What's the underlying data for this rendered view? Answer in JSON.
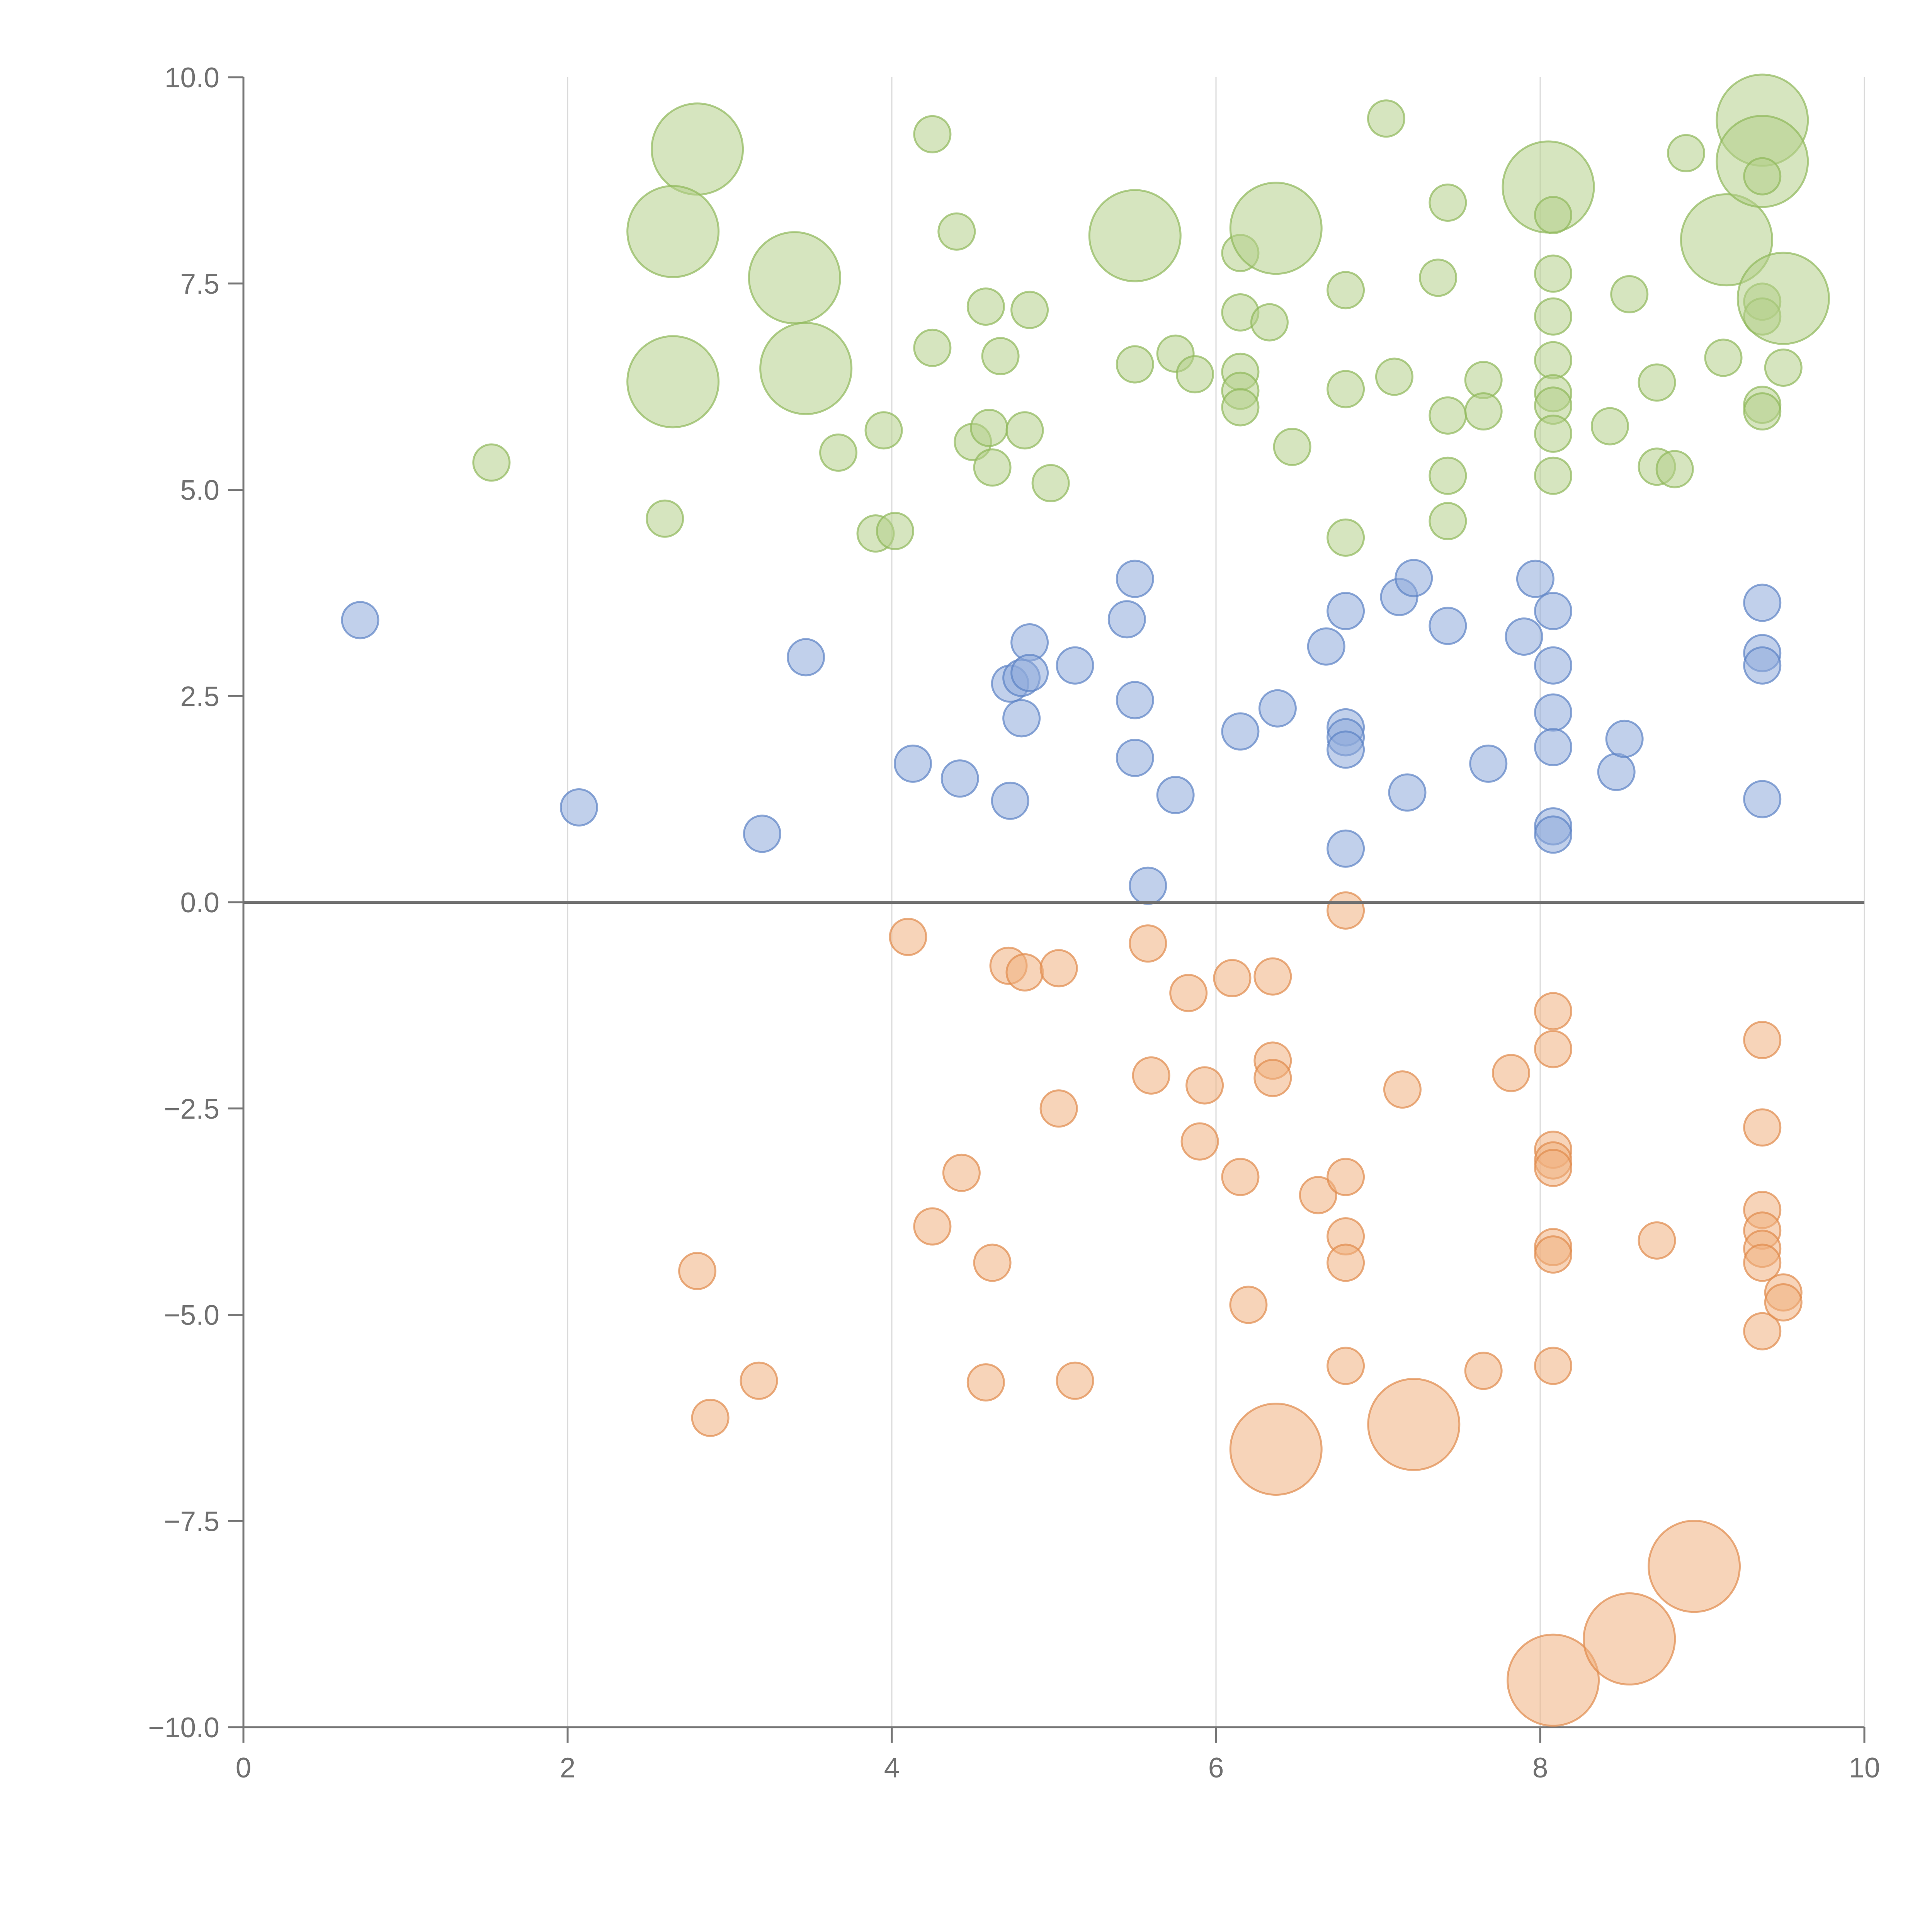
{
  "chart_data": {
    "type": "scatter",
    "title": "",
    "xlabel": "",
    "ylabel": "",
    "xlim": [
      0,
      10
    ],
    "ylim": [
      -10,
      10
    ],
    "grid": "vertical lines at x ticks",
    "legend": "none",
    "x_ticks": [
      "0",
      "2",
      "4",
      "6",
      "8",
      "10"
    ],
    "y_ticks": [
      "−10.0",
      "−7.5",
      "−5.0",
      "−2.5",
      "0.0",
      "2.5",
      "5.0",
      "7.5",
      "10.0"
    ],
    "x_tick_values": [
      0,
      2,
      4,
      6,
      8,
      10
    ],
    "y_tick_values": [
      -10,
      -7.5,
      -5,
      -2.5,
      0,
      2.5,
      5,
      7.5,
      10
    ],
    "reference_line_y": 0,
    "colors": {
      "green_fill": "#b5d08a",
      "green_stroke": "#8fb85a",
      "blue_fill": "#8eaadb",
      "blue_stroke": "#5b82c4",
      "orange_fill": "#f0b07f",
      "orange_stroke": "#df8a4c",
      "label_color": "#ffffff"
    },
    "series": [
      {
        "color_key": "green",
        "points": [
          [
            1.53,
            5.33,
            1
          ],
          [
            2.6,
            4.65,
            1
          ],
          [
            2.8,
            9.13,
            3
          ],
          [
            2.65,
            8.13,
            3
          ],
          [
            2.65,
            6.31,
            3
          ],
          [
            3.4,
            7.57,
            3
          ],
          [
            3.47,
            6.47,
            3
          ],
          [
            3.67,
            5.45,
            1
          ],
          [
            3.9,
            4.47,
            1
          ],
          [
            3.95,
            5.72,
            1
          ],
          [
            4.02,
            4.5,
            1
          ],
          [
            4.25,
            9.31,
            1
          ],
          [
            4.25,
            6.72,
            1
          ],
          [
            4.4,
            8.13,
            1
          ],
          [
            4.5,
            5.58,
            1
          ],
          [
            4.58,
            7.22,
            1
          ],
          [
            4.6,
            5.75,
            1
          ],
          [
            4.62,
            5.27,
            1
          ],
          [
            4.67,
            6.62,
            1
          ],
          [
            4.82,
            5.72,
            1
          ],
          [
            4.85,
            7.18,
            1
          ],
          [
            4.98,
            5.08,
            1
          ],
          [
            5.5,
            8.08,
            3
          ],
          [
            5.5,
            6.52,
            1
          ],
          [
            5.75,
            6.65,
            1
          ],
          [
            5.87,
            6.4,
            1
          ],
          [
            6.15,
            7.87,
            1
          ],
          [
            6.15,
            7.15,
            1
          ],
          [
            6.15,
            6.43,
            1
          ],
          [
            6.15,
            6.2,
            1
          ],
          [
            6.15,
            6.0,
            1
          ],
          [
            6.33,
            7.03,
            1
          ],
          [
            6.37,
            8.17,
            3
          ],
          [
            6.47,
            5.52,
            1
          ],
          [
            6.8,
            7.42,
            1
          ],
          [
            6.8,
            6.22,
            1
          ],
          [
            6.8,
            4.42,
            1
          ],
          [
            7.05,
            9.5,
            1
          ],
          [
            7.1,
            6.37,
            1
          ],
          [
            7.37,
            7.57,
            1
          ],
          [
            7.43,
            8.48,
            1
          ],
          [
            7.43,
            5.9,
            1
          ],
          [
            7.43,
            5.17,
            1
          ],
          [
            7.43,
            4.62,
            1
          ],
          [
            7.65,
            6.33,
            1
          ],
          [
            7.65,
            5.95,
            1
          ],
          [
            8.05,
            8.67,
            3
          ],
          [
            8.08,
            8.33,
            1
          ],
          [
            8.08,
            7.62,
            1
          ],
          [
            8.08,
            7.1,
            1
          ],
          [
            8.08,
            6.57,
            1
          ],
          [
            8.08,
            6.17,
            1
          ],
          [
            8.08,
            6.02,
            1
          ],
          [
            8.08,
            5.68,
            1
          ],
          [
            8.08,
            5.17,
            1
          ],
          [
            8.43,
            5.77,
            1
          ],
          [
            8.55,
            7.37,
            1
          ],
          [
            8.72,
            6.3,
            1
          ],
          [
            8.72,
            5.28,
            1
          ],
          [
            8.83,
            5.25,
            1
          ],
          [
            8.9,
            9.08,
            1
          ],
          [
            9.13,
            6.6,
            1
          ],
          [
            9.15,
            8.03,
            3
          ],
          [
            9.37,
            9.48,
            3
          ],
          [
            9.37,
            8.98,
            3
          ],
          [
            9.37,
            8.8,
            1
          ],
          [
            9.37,
            7.28,
            1
          ],
          [
            9.37,
            7.1,
            1
          ],
          [
            9.37,
            6.03,
            1
          ],
          [
            9.37,
            5.95,
            1
          ],
          [
            9.5,
            7.32,
            3
          ],
          [
            9.5,
            6.48,
            1
          ]
        ]
      },
      {
        "color_key": "blue",
        "points": [
          [
            0.72,
            3.42,
            1
          ],
          [
            2.07,
            1.15,
            1
          ],
          [
            3.2,
            0.83,
            1
          ],
          [
            3.47,
            2.97,
            1
          ],
          [
            4.13,
            1.68,
            1
          ],
          [
            4.42,
            1.5,
            1
          ],
          [
            4.73,
            1.23,
            1
          ],
          [
            4.73,
            2.65,
            1
          ],
          [
            4.8,
            2.23,
            1
          ],
          [
            4.8,
            2.72,
            1
          ],
          [
            4.85,
            3.15,
            1
          ],
          [
            4.85,
            2.78,
            1
          ],
          [
            5.13,
            2.87,
            1
          ],
          [
            5.45,
            3.43,
            1
          ],
          [
            5.5,
            3.92,
            1
          ],
          [
            5.5,
            2.45,
            1
          ],
          [
            5.5,
            1.75,
            1
          ],
          [
            5.58,
            0.2,
            1
          ],
          [
            5.75,
            1.3,
            1
          ],
          [
            6.15,
            2.07,
            1
          ],
          [
            6.38,
            2.35,
            1
          ],
          [
            6.68,
            3.1,
            1
          ],
          [
            6.8,
            3.53,
            1
          ],
          [
            6.8,
            2.12,
            1
          ],
          [
            6.8,
            2.0,
            1
          ],
          [
            6.8,
            1.85,
            1
          ],
          [
            6.8,
            0.65,
            1
          ],
          [
            7.13,
            3.7,
            1
          ],
          [
            7.18,
            1.33,
            1
          ],
          [
            7.22,
            3.93,
            1
          ],
          [
            7.43,
            3.35,
            1
          ],
          [
            7.68,
            1.68,
            1
          ],
          [
            7.9,
            3.22,
            1
          ],
          [
            7.97,
            3.92,
            1
          ],
          [
            8.08,
            3.53,
            1
          ],
          [
            8.08,
            2.87,
            1
          ],
          [
            8.08,
            2.3,
            1
          ],
          [
            8.08,
            1.88,
            1
          ],
          [
            8.08,
            0.92,
            1
          ],
          [
            8.08,
            0.82,
            1
          ],
          [
            8.47,
            1.58,
            1
          ],
          [
            8.52,
            1.98,
            1
          ],
          [
            9.37,
            3.63,
            1
          ],
          [
            9.37,
            3.02,
            1
          ],
          [
            9.37,
            2.87,
            1
          ],
          [
            9.37,
            1.25,
            1
          ]
        ]
      },
      {
        "color_key": "orange",
        "points": [
          [
            2.8,
            -4.47,
            1
          ],
          [
            2.88,
            -6.25,
            1
          ],
          [
            3.18,
            -5.8,
            1
          ],
          [
            4.1,
            -0.42,
            1
          ],
          [
            4.25,
            -3.93,
            1
          ],
          [
            4.43,
            -3.28,
            1
          ],
          [
            4.58,
            -5.82,
            1
          ],
          [
            4.62,
            -4.37,
            1
          ],
          [
            4.72,
            -0.77,
            1
          ],
          [
            4.82,
            -0.85,
            1
          ],
          [
            5.03,
            -0.8,
            1
          ],
          [
            5.03,
            -2.5,
            1
          ],
          [
            5.13,
            -5.8,
            1
          ],
          [
            5.58,
            -0.5,
            1
          ],
          [
            5.6,
            -2.1,
            1
          ],
          [
            5.83,
            -1.1,
            1
          ],
          [
            5.9,
            -2.9,
            1
          ],
          [
            5.93,
            -2.22,
            1
          ],
          [
            6.1,
            -0.92,
            1
          ],
          [
            6.15,
            -3.33,
            1
          ],
          [
            6.2,
            -4.88,
            1
          ],
          [
            6.35,
            -0.9,
            1
          ],
          [
            6.35,
            -1.92,
            1
          ],
          [
            6.35,
            -2.13,
            1
          ],
          [
            6.37,
            -6.63,
            3
          ],
          [
            6.63,
            -3.55,
            1
          ],
          [
            6.8,
            -0.1,
            1
          ],
          [
            6.8,
            -3.33,
            1
          ],
          [
            6.8,
            -4.05,
            1
          ],
          [
            6.8,
            -4.37,
            1
          ],
          [
            6.8,
            -5.62,
            1
          ],
          [
            7.15,
            -2.27,
            1
          ],
          [
            7.22,
            -6.33,
            3
          ],
          [
            7.65,
            -5.68,
            1
          ],
          [
            7.82,
            -2.07,
            1
          ],
          [
            8.08,
            -1.32,
            1
          ],
          [
            8.08,
            -1.78,
            1
          ],
          [
            8.08,
            -3.0,
            1
          ],
          [
            8.08,
            -3.13,
            1
          ],
          [
            8.08,
            -3.22,
            1
          ],
          [
            8.08,
            -4.18,
            1
          ],
          [
            8.08,
            -4.27,
            1
          ],
          [
            8.08,
            -5.62,
            1
          ],
          [
            8.08,
            -9.43,
            3
          ],
          [
            8.55,
            -8.93,
            3
          ],
          [
            8.72,
            -4.1,
            1
          ],
          [
            8.95,
            -8.05,
            3
          ],
          [
            9.37,
            -1.67,
            1
          ],
          [
            9.37,
            -2.73,
            1
          ],
          [
            9.37,
            -3.73,
            1
          ],
          [
            9.37,
            -3.98,
            1
          ],
          [
            9.37,
            -4.2,
            1
          ],
          [
            9.37,
            -4.37,
            1
          ],
          [
            9.37,
            -5.2,
            1
          ],
          [
            9.5,
            -4.73,
            1
          ],
          [
            9.5,
            -4.85,
            1
          ]
        ]
      }
    ]
  }
}
